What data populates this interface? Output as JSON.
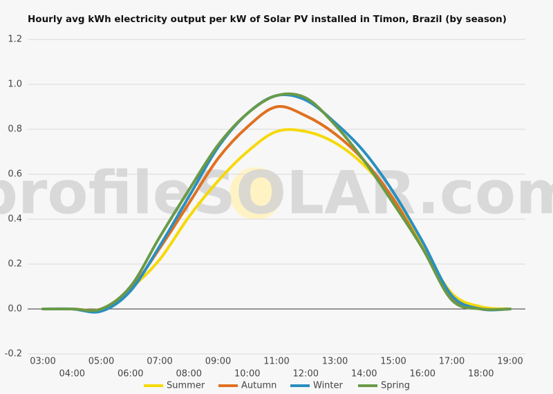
{
  "chart_data": {
    "type": "line",
    "title": "Hourly avg kWh electricity output per kW of Solar PV installed in Timon, Brazil (by season)",
    "watermark": "profileSOLAR.com",
    "categories": [
      "03:00",
      "04:00",
      "05:00",
      "06:00",
      "07:00",
      "08:00",
      "09:00",
      "10:00",
      "11:00",
      "12:00",
      "13:00",
      "14:00",
      "15:00",
      "16:00",
      "17:00",
      "18:00",
      "19:00"
    ],
    "series": [
      {
        "name": "Summer",
        "color": "#f5d90a",
        "values": [
          0,
          0,
          0,
          0.09,
          0.22,
          0.41,
          0.57,
          0.7,
          0.79,
          0.79,
          0.74,
          0.64,
          0.49,
          0.28,
          0.07,
          0.01,
          0
        ]
      },
      {
        "name": "Autumn",
        "color": "#e07020",
        "values": [
          0,
          0,
          0,
          0.09,
          0.27,
          0.47,
          0.67,
          0.81,
          0.9,
          0.86,
          0.78,
          0.66,
          0.49,
          0.27,
          0.05,
          0,
          0
        ]
      },
      {
        "name": "Winter",
        "color": "#2a8fc0",
        "values": [
          0,
          0,
          -0.01,
          0.08,
          0.28,
          0.5,
          0.72,
          0.87,
          0.95,
          0.93,
          0.83,
          0.7,
          0.52,
          0.3,
          0.06,
          0,
          0
        ]
      },
      {
        "name": "Spring",
        "color": "#6a9a48",
        "values": [
          0,
          0,
          0,
          0.1,
          0.32,
          0.53,
          0.73,
          0.87,
          0.95,
          0.94,
          0.82,
          0.66,
          0.47,
          0.27,
          0.04,
          0,
          0
        ]
      }
    ],
    "ylim": [
      -0.2,
      1.2
    ],
    "yticks": [
      -0.2,
      {
        "value": 0,
        "label": "0.0"
      },
      0.2,
      0.4,
      0.6,
      0.8,
      {
        "value": 1,
        "label": "1.0"
      },
      1.2
    ],
    "grid": true,
    "legend": "bottom"
  }
}
